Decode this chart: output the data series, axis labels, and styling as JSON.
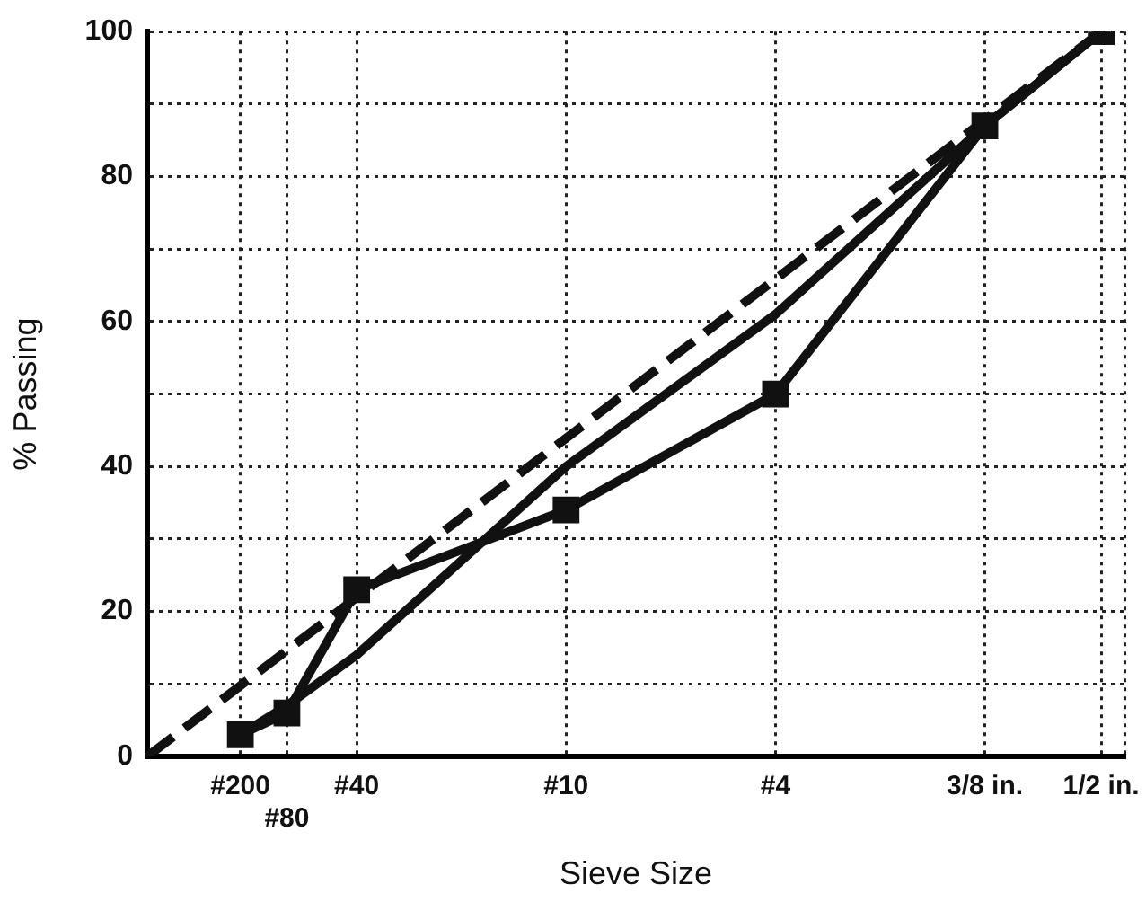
{
  "chart_data": {
    "type": "line",
    "xlabel": "Sieve Size",
    "ylabel": "% Passing",
    "categories": [
      null,
      null,
      null,
      null,
      "#200",
      null,
      "#80",
      null,
      null,
      "#40",
      null,
      null,
      null,
      null,
      null,
      null,
      null,
      null,
      "#10",
      null,
      null,
      null,
      null,
      null,
      null,
      null,
      null,
      "#4",
      null,
      null,
      null,
      null,
      null,
      null,
      null,
      null,
      "3/8 in.",
      null,
      null,
      null,
      null,
      "1/2 in.",
      null
    ],
    "series": [
      {
        "color": "#111111",
        "marker": "square",
        "line_style": "solid",
        "values": [
          null,
          null,
          null,
          null,
          3,
          null,
          6,
          null,
          null,
          23,
          null,
          null,
          null,
          null,
          null,
          null,
          null,
          null,
          34,
          null,
          null,
          null,
          null,
          null,
          null,
          null,
          null,
          50,
          null,
          null,
          null,
          null,
          null,
          null,
          null,
          null,
          87,
          null,
          null,
          null,
          null,
          100,
          null
        ]
      },
      {
        "color": "#111111",
        "line_style": "solid",
        "values": [
          null,
          null,
          null,
          null,
          3,
          null,
          7,
          null,
          null,
          14,
          null,
          null,
          null,
          null,
          null,
          null,
          null,
          null,
          40,
          null,
          null,
          null,
          null,
          null,
          null,
          null,
          null,
          61,
          null,
          null,
          null,
          null,
          null,
          null,
          null,
          null,
          87,
          null,
          null,
          null,
          null,
          100,
          null
        ]
      },
      {
        "color": "#111111",
        "line_style": "dashed",
        "values": [
          0,
          null,
          null,
          null,
          null,
          null,
          null,
          null,
          null,
          null,
          null,
          null,
          null,
          null,
          null,
          null,
          null,
          null,
          null,
          null,
          null,
          null,
          null,
          null,
          null,
          null,
          null,
          null,
          null,
          null,
          null,
          null,
          null,
          null,
          null,
          null,
          null,
          null,
          null,
          null,
          null,
          100,
          null
        ]
      }
    ],
    "ylim": [
      0,
      100
    ],
    "yticks": [
      0,
      {
        "value": 10,
        "label": null
      },
      20,
      {
        "value": 30,
        "label": null
      },
      40,
      {
        "value": 50,
        "label": null
      },
      60,
      {
        "value": 70,
        "label": null
      },
      80,
      {
        "value": 90,
        "label": null
      },
      100
    ],
    "grid": true
  }
}
